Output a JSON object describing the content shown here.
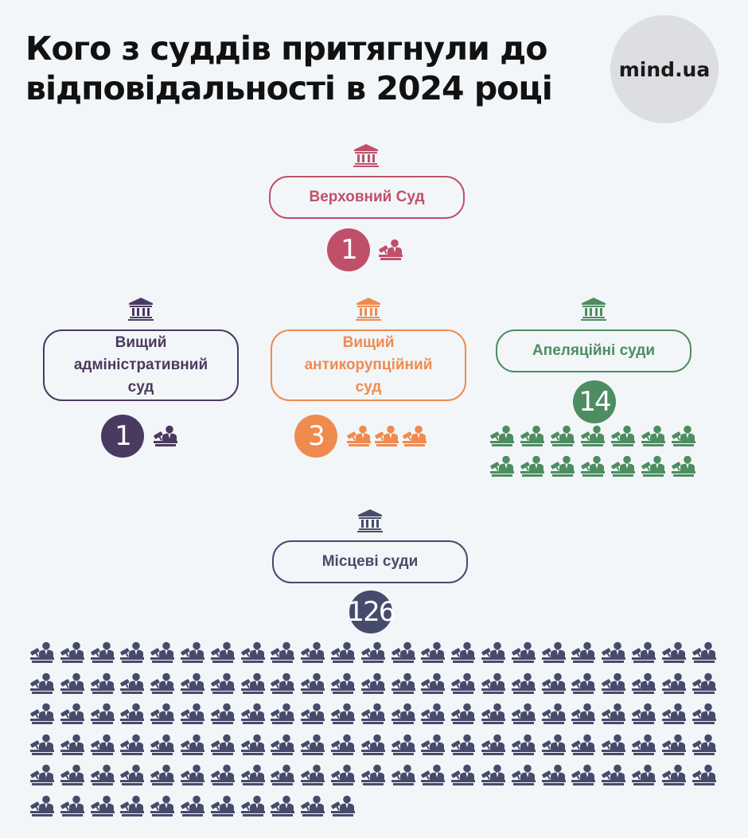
{
  "header": {
    "title_line1": "Кого з суддів притягнули до",
    "title_line2": "відповідальності в 2024 році",
    "logo_text": "mind.ua"
  },
  "icons": {
    "court": "courthouse-icon",
    "judge": "judge-with-gavel-icon"
  },
  "chart_data": {
    "type": "pictogram",
    "unit": "1 icon = 1 judge",
    "categories": [
      "Верховний Суд",
      "Вищий адміністративний суд",
      "Вищий антикорупційний суд",
      "Апеляційні суди",
      "Місцеві суди"
    ],
    "values": [
      1,
      1,
      3,
      14,
      126
    ],
    "courts": [
      {
        "key": "supreme",
        "name": "Верховний Суд",
        "lines": [
          "Верховний Суд"
        ],
        "count": 1,
        "count_label": "1",
        "color": "#c0506a"
      },
      {
        "key": "admin",
        "name": "Вищий адміністративний суд",
        "lines": [
          "Вищий",
          "адміністративний",
          "суд"
        ],
        "count": 1,
        "count_label": "1",
        "color": "#4b3a5f"
      },
      {
        "key": "anticorr",
        "name": "Вищий антикорупційний суд",
        "lines": [
          "Вищий",
          "антикорупційний",
          "суд"
        ],
        "count": 3,
        "count_label": "3",
        "color": "#ef8b4f"
      },
      {
        "key": "appeal",
        "name": "Апеляційні суди",
        "lines": [
          "Апеляційні суди"
        ],
        "count": 14,
        "count_label": "14",
        "color": "#4d8d61"
      },
      {
        "key": "local",
        "name": "Місцеві суди",
        "lines": [
          "Місцеві суди"
        ],
        "count": 126,
        "count_label": "126",
        "color": "#474b6b"
      }
    ]
  }
}
